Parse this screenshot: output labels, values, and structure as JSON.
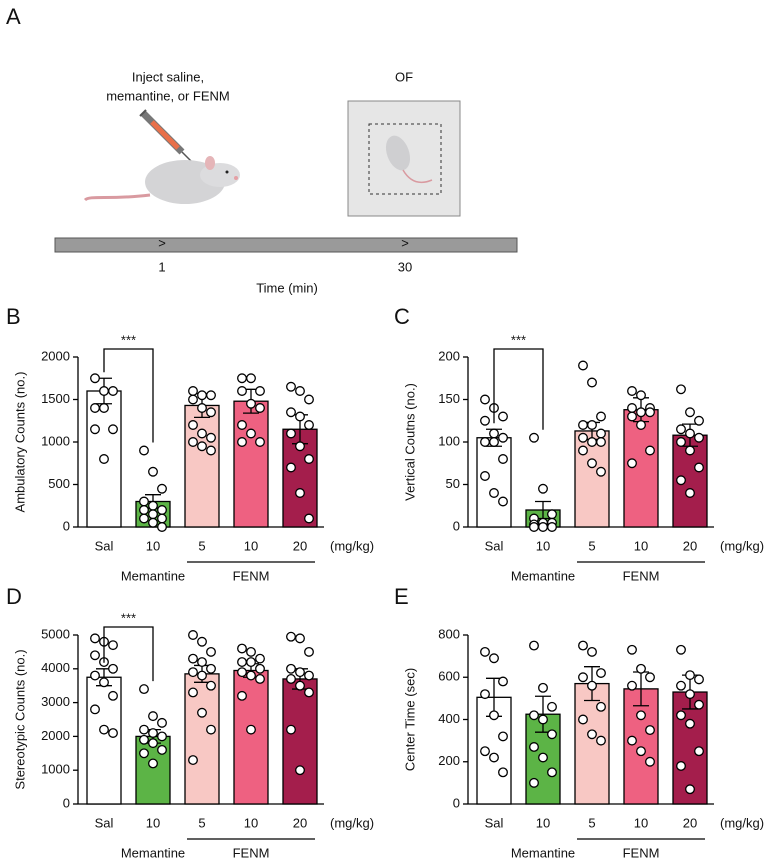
{
  "panels": [
    "A",
    "B",
    "C",
    "D",
    "E"
  ],
  "schematic": {
    "inject_label": [
      "Inject saline,",
      "memantine, or FENM"
    ],
    "test_label": "OF",
    "timepoints": [
      "1",
      "30"
    ],
    "time_label": "Time (min)"
  },
  "chart_data": [
    {
      "type": "bar",
      "ylabel": "Ambulatory Counts (no.)",
      "ylim": [
        0,
        2000
      ],
      "yticks": [
        0,
        500,
        1000,
        1500,
        2000
      ],
      "categories": [
        "Sal",
        "10",
        "5",
        "10",
        "20"
      ],
      "dose_unit": "(mg/kg)",
      "group_labels": [
        "Memantine",
        "FENM"
      ],
      "colors": [
        "#ffffff",
        "#5cb446",
        "#f8c8c4",
        "#ee6181",
        "#a41e4c"
      ],
      "values": [
        1600,
        300,
        1430,
        1480,
        1150
      ],
      "errors": [
        150,
        80,
        140,
        140,
        170
      ],
      "points": [
        [
          1750,
          1600,
          1600,
          1400,
          1400,
          1150,
          1150,
          800
        ],
        [
          900,
          650,
          450,
          300,
          250,
          200,
          200,
          150,
          100,
          100,
          50,
          0
        ],
        [
          1600,
          1550,
          1550,
          1500,
          1400,
          1350,
          1200,
          1100,
          1050,
          1000,
          950,
          900
        ],
        [
          1750,
          1750,
          1600,
          1600,
          1450,
          1400,
          1200,
          1100,
          1000,
          1000
        ],
        [
          1650,
          1600,
          1500,
          1350,
          1300,
          1200,
          1100,
          950,
          800,
          700,
          400,
          100
        ]
      ],
      "annotation": "***"
    },
    {
      "type": "bar",
      "ylabel": "Vertical Coutns (no.)",
      "ylim": [
        0,
        200
      ],
      "yticks": [
        0,
        50,
        100,
        150,
        200
      ],
      "categories": [
        "Sal",
        "10",
        "5",
        "10",
        "20"
      ],
      "dose_unit": "(mg/kg)",
      "group_labels": [
        "Memantine",
        "FENM"
      ],
      "colors": [
        "#ffffff",
        "#5cb446",
        "#f8c8c4",
        "#ee6181",
        "#a41e4c"
      ],
      "values": [
        105,
        20,
        113,
        138,
        108
      ],
      "errors": [
        10,
        10,
        10,
        14,
        13
      ],
      "points": [
        [
          150,
          140,
          130,
          125,
          110,
          105,
          100,
          100,
          80,
          60,
          40,
          30
        ],
        [
          105,
          45,
          15,
          10,
          5,
          5,
          3,
          0,
          0,
          0
        ],
        [
          190,
          170,
          130,
          120,
          120,
          110,
          105,
          100,
          100,
          90,
          75,
          65
        ],
        [
          160,
          155,
          140,
          140,
          135,
          135,
          130,
          120,
          90,
          75
        ],
        [
          162,
          135,
          125,
          115,
          110,
          105,
          100,
          90,
          70,
          55,
          40
        ]
      ],
      "annotation": "***"
    },
    {
      "type": "bar",
      "ylabel": "Stereotypic Counts (no.)",
      "ylim": [
        0,
        5000
      ],
      "yticks": [
        0,
        1000,
        2000,
        3000,
        4000,
        5000
      ],
      "categories": [
        "Sal",
        "10",
        "5",
        "10",
        "20"
      ],
      "dose_unit": "(mg/kg)",
      "group_labels": [
        "Memantine",
        "FENM"
      ],
      "colors": [
        "#ffffff",
        "#5cb446",
        "#f8c8c4",
        "#ee6181",
        "#a41e4c"
      ],
      "values": [
        3750,
        2000,
        3850,
        3950,
        3700
      ],
      "errors": [
        250,
        200,
        250,
        200,
        300
      ],
      "points": [
        [
          4900,
          4800,
          4700,
          4400,
          4200,
          4000,
          3800,
          3600,
          3200,
          2800,
          2200,
          2100
        ],
        [
          3400,
          2600,
          2400,
          2200,
          2100,
          2000,
          1900,
          1800,
          1600,
          1500,
          1200
        ],
        [
          5000,
          4800,
          4500,
          4300,
          4200,
          4000,
          3900,
          3800,
          3500,
          3300,
          2700,
          2200,
          1300
        ],
        [
          4600,
          4500,
          4300,
          4200,
          4200,
          4000,
          3900,
          3800,
          3700,
          3200,
          2200
        ],
        [
          4950,
          4900,
          4500,
          4000,
          3900,
          3800,
          3700,
          3500,
          3300,
          2200,
          1000
        ]
      ],
      "annotation": "***"
    },
    {
      "type": "bar",
      "ylabel": "Center Time (sec)",
      "ylim": [
        0,
        800
      ],
      "yticks": [
        0,
        200,
        400,
        600,
        800
      ],
      "categories": [
        "Sal",
        "10",
        "5",
        "10",
        "20"
      ],
      "dose_unit": "(mg/kg)",
      "group_labels": [
        "Memantine",
        "FENM"
      ],
      "colors": [
        "#ffffff",
        "#5cb446",
        "#f8c8c4",
        "#ee6181",
        "#a41e4c"
      ],
      "values": [
        505,
        425,
        570,
        545,
        530
      ],
      "errors": [
        90,
        85,
        80,
        80,
        80
      ],
      "points": [
        [
          720,
          690,
          580,
          520,
          420,
          320,
          250,
          220,
          150
        ],
        [
          750,
          550,
          460,
          420,
          400,
          330,
          270,
          220,
          150,
          100
        ],
        [
          750,
          720,
          620,
          600,
          560,
          460,
          400,
          330,
          300
        ],
        [
          730,
          640,
          600,
          560,
          420,
          350,
          300,
          250,
          200
        ],
        [
          730,
          610,
          590,
          560,
          520,
          470,
          420,
          380,
          250,
          180,
          70
        ]
      ]
    }
  ]
}
